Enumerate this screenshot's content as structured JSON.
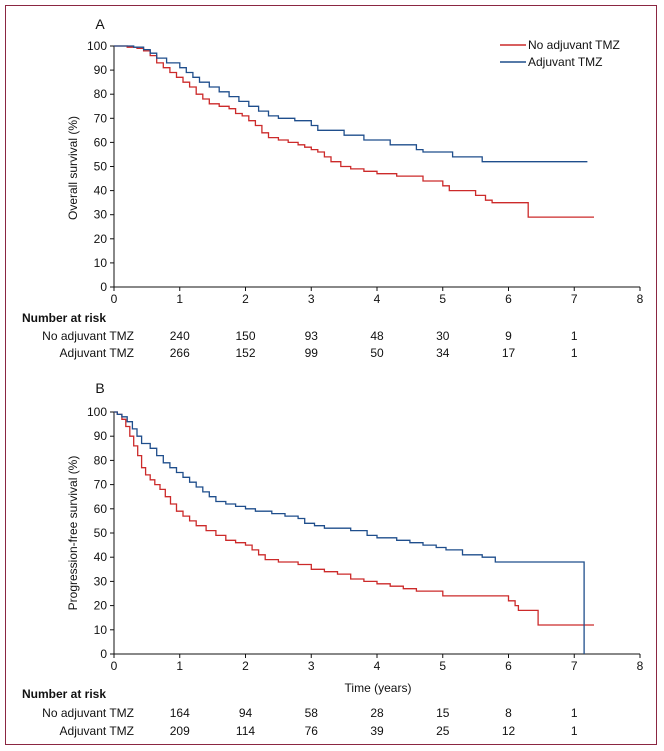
{
  "colors": {
    "no_adjuvant": "#cc2a2a",
    "adjuvant": "#1f4e8c",
    "axis": "#111111",
    "frame": "#8b2742"
  },
  "legend": {
    "no_adjuvant_label": "No adjuvant TMZ",
    "adjuvant_label": "Adjuvant TMZ"
  },
  "risk_table_header": "Number at risk",
  "chart_data": [
    {
      "type": "line",
      "panel_label": "A",
      "ylabel": "Overall survival (%)",
      "xlabel": "",
      "xlim": [
        0,
        8
      ],
      "ylim": [
        0,
        100
      ],
      "xticks": [
        0,
        1,
        2,
        3,
        4,
        5,
        6,
        7,
        8
      ],
      "yticks": [
        0,
        10,
        20,
        30,
        40,
        50,
        60,
        70,
        80,
        90,
        100
      ],
      "legend_position": "top-right",
      "series": [
        {
          "name": "No adjuvant TMZ",
          "step": true,
          "points": [
            [
              0,
              100
            ],
            [
              0.2,
              99.5
            ],
            [
              0.35,
              99
            ],
            [
              0.45,
              98
            ],
            [
              0.55,
              96
            ],
            [
              0.65,
              93
            ],
            [
              0.75,
              91
            ],
            [
              0.85,
              89
            ],
            [
              0.95,
              87
            ],
            [
              1.05,
              85
            ],
            [
              1.15,
              83
            ],
            [
              1.25,
              80
            ],
            [
              1.35,
              78
            ],
            [
              1.45,
              76
            ],
            [
              1.6,
              75
            ],
            [
              1.75,
              74
            ],
            [
              1.85,
              72
            ],
            [
              1.95,
              71
            ],
            [
              2.05,
              69
            ],
            [
              2.15,
              67
            ],
            [
              2.25,
              64
            ],
            [
              2.35,
              62
            ],
            [
              2.5,
              61
            ],
            [
              2.65,
              60
            ],
            [
              2.8,
              59
            ],
            [
              2.9,
              58
            ],
            [
              3.0,
              57
            ],
            [
              3.1,
              56
            ],
            [
              3.2,
              54
            ],
            [
              3.3,
              52
            ],
            [
              3.45,
              50
            ],
            [
              3.6,
              49
            ],
            [
              3.8,
              48
            ],
            [
              4.0,
              47
            ],
            [
              4.3,
              46
            ],
            [
              4.7,
              44
            ],
            [
              5.0,
              42
            ],
            [
              5.1,
              40
            ],
            [
              5.5,
              38
            ],
            [
              5.65,
              36
            ],
            [
              5.75,
              35
            ],
            [
              6.3,
              29
            ],
            [
              7.3,
              29
            ]
          ]
        },
        {
          "name": "Adjuvant TMZ",
          "step": true,
          "points": [
            [
              0,
              100
            ],
            [
              0.3,
              99.5
            ],
            [
              0.45,
              98.5
            ],
            [
              0.55,
              97
            ],
            [
              0.65,
              95
            ],
            [
              0.8,
              93
            ],
            [
              1.0,
              91
            ],
            [
              1.1,
              89
            ],
            [
              1.2,
              87
            ],
            [
              1.3,
              85
            ],
            [
              1.45,
              83
            ],
            [
              1.6,
              81
            ],
            [
              1.75,
              79
            ],
            [
              1.9,
              77
            ],
            [
              2.05,
              75
            ],
            [
              2.2,
              73
            ],
            [
              2.35,
              71
            ],
            [
              2.5,
              70
            ],
            [
              2.75,
              69
            ],
            [
              3.0,
              67
            ],
            [
              3.1,
              65
            ],
            [
              3.5,
              63
            ],
            [
              3.8,
              61
            ],
            [
              4.2,
              59
            ],
            [
              4.6,
              57
            ],
            [
              4.7,
              56
            ],
            [
              5.15,
              54
            ],
            [
              5.6,
              52
            ],
            [
              7.2,
              52
            ]
          ]
        }
      ],
      "risk_table": {
        "times": [
          1,
          2,
          3,
          4,
          5,
          6,
          7
        ],
        "rows": [
          {
            "label": "No adjuvant TMZ",
            "values": [
              "240",
              "150",
              "93",
              "48",
              "30",
              "9",
              "1"
            ]
          },
          {
            "label": "Adjuvant TMZ",
            "values": [
              "266",
              "152",
              "99",
              "50",
              "34",
              "17",
              "1"
            ]
          }
        ]
      }
    },
    {
      "type": "line",
      "panel_label": "B",
      "ylabel": "Progression-free survival (%)",
      "xlabel": "Time (years)",
      "xlim": [
        0,
        8
      ],
      "ylim": [
        0,
        100
      ],
      "xticks": [
        0,
        1,
        2,
        3,
        4,
        5,
        6,
        7,
        8
      ],
      "yticks": [
        0,
        10,
        20,
        30,
        40,
        50,
        60,
        70,
        80,
        90,
        100
      ],
      "series": [
        {
          "name": "No adjuvant TMZ",
          "step": true,
          "points": [
            [
              0,
              100
            ],
            [
              0.05,
              99
            ],
            [
              0.12,
              97
            ],
            [
              0.18,
              94
            ],
            [
              0.24,
              90
            ],
            [
              0.3,
              86
            ],
            [
              0.36,
              82
            ],
            [
              0.42,
              77
            ],
            [
              0.48,
              74
            ],
            [
              0.55,
              72
            ],
            [
              0.62,
              70
            ],
            [
              0.7,
              68
            ],
            [
              0.78,
              65
            ],
            [
              0.86,
              62
            ],
            [
              0.95,
              59
            ],
            [
              1.05,
              57
            ],
            [
              1.15,
              55
            ],
            [
              1.25,
              53
            ],
            [
              1.4,
              51
            ],
            [
              1.55,
              49
            ],
            [
              1.7,
              47
            ],
            [
              1.85,
              46
            ],
            [
              2.0,
              45
            ],
            [
              2.1,
              43
            ],
            [
              2.2,
              41
            ],
            [
              2.3,
              39
            ],
            [
              2.5,
              38
            ],
            [
              2.8,
              37
            ],
            [
              3.0,
              35
            ],
            [
              3.2,
              34
            ],
            [
              3.4,
              33
            ],
            [
              3.6,
              31
            ],
            [
              3.8,
              30
            ],
            [
              4.0,
              29
            ],
            [
              4.2,
              28
            ],
            [
              4.4,
              27
            ],
            [
              4.6,
              26
            ],
            [
              5.0,
              25
            ],
            [
              5.0,
              24
            ],
            [
              5.5,
              24
            ],
            [
              5.9,
              24
            ],
            [
              6.0,
              22
            ],
            [
              6.1,
              20
            ],
            [
              6.15,
              18
            ],
            [
              6.45,
              12
            ],
            [
              7.3,
              12
            ]
          ]
        },
        {
          "name": "Adjuvant TMZ",
          "step": true,
          "points": [
            [
              0,
              100
            ],
            [
              0.05,
              99
            ],
            [
              0.12,
              98
            ],
            [
              0.2,
              96
            ],
            [
              0.28,
              93
            ],
            [
              0.35,
              90
            ],
            [
              0.42,
              87
            ],
            [
              0.55,
              85
            ],
            [
              0.65,
              82
            ],
            [
              0.75,
              79
            ],
            [
              0.85,
              77
            ],
            [
              0.95,
              75
            ],
            [
              1.05,
              73
            ],
            [
              1.15,
              71
            ],
            [
              1.25,
              69
            ],
            [
              1.35,
              67
            ],
            [
              1.45,
              65
            ],
            [
              1.55,
              63
            ],
            [
              1.7,
              62
            ],
            [
              1.85,
              61
            ],
            [
              2.0,
              60
            ],
            [
              2.15,
              59
            ],
            [
              2.4,
              58
            ],
            [
              2.6,
              57
            ],
            [
              2.8,
              56
            ],
            [
              2.9,
              54
            ],
            [
              3.05,
              53
            ],
            [
              3.2,
              52
            ],
            [
              3.6,
              51
            ],
            [
              3.85,
              49
            ],
            [
              4.0,
              48
            ],
            [
              4.3,
              47
            ],
            [
              4.5,
              46
            ],
            [
              4.7,
              45
            ],
            [
              4.9,
              44
            ],
            [
              5.05,
              43
            ],
            [
              5.3,
              41
            ],
            [
              5.6,
              40
            ],
            [
              5.8,
              38
            ],
            [
              7.15,
              38
            ],
            [
              7.15,
              0
            ]
          ]
        }
      ],
      "risk_table": {
        "times": [
          1,
          2,
          3,
          4,
          5,
          6,
          7
        ],
        "rows": [
          {
            "label": "No adjuvant TMZ",
            "values": [
              "164",
              "94",
              "58",
              "28",
              "15",
              "8",
              "1"
            ]
          },
          {
            "label": "Adjuvant TMZ",
            "values": [
              "209",
              "114",
              "76",
              "39",
              "25",
              "12",
              "1"
            ]
          }
        ]
      }
    }
  ]
}
